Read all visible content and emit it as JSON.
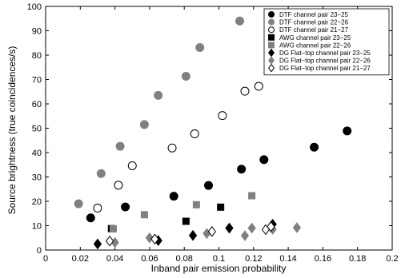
{
  "chart_data": {
    "type": "scatter",
    "title": "",
    "xlabel": "Inband pair emission probability",
    "ylabel": "Source brightness (true coincidences/s)",
    "xlim": [
      0,
      0.2
    ],
    "ylim": [
      0,
      100
    ],
    "xticks": [
      0,
      0.02,
      0.04,
      0.06,
      0.08,
      0.1,
      0.12,
      0.14,
      0.16,
      0.18,
      0.2
    ],
    "yticks": [
      0,
      10,
      20,
      30,
      40,
      50,
      60,
      70,
      80,
      90,
      100
    ],
    "xtick_labels": [
      "0",
      "0.02",
      "0.04",
      "0.06",
      "0.08",
      "0.1",
      "0.12",
      "0.14",
      "0.16",
      "0.18",
      "0.2"
    ],
    "ytick_labels": [
      "0",
      "10",
      "20",
      "30",
      "40",
      "50",
      "60",
      "70",
      "80",
      "90",
      "100"
    ],
    "grid": false,
    "legend_position": "top-right",
    "series": [
      {
        "name": "DTF channel pair 23−25",
        "marker": "circle",
        "fill": "#000000",
        "stroke": "#000000",
        "points": [
          [
            0.026,
            13.2
          ],
          [
            0.046,
            17.7
          ],
          [
            0.074,
            22.1
          ],
          [
            0.094,
            26.5
          ],
          [
            0.113,
            33.2
          ],
          [
            0.126,
            37.1
          ],
          [
            0.155,
            42.2
          ],
          [
            0.174,
            48.9
          ]
        ]
      },
      {
        "name": "DTF channel pair 22−26",
        "marker": "circle",
        "fill": "#808080",
        "stroke": "#808080",
        "points": [
          [
            0.019,
            19.0
          ],
          [
            0.032,
            31.4
          ],
          [
            0.043,
            42.6
          ],
          [
            0.057,
            51.5
          ],
          [
            0.065,
            63.5
          ],
          [
            0.081,
            71.3
          ],
          [
            0.089,
            83.1
          ],
          [
            0.112,
            94.0
          ]
        ]
      },
      {
        "name": "DTF channel pair 21−27",
        "marker": "circle",
        "fill": "#ffffff",
        "stroke": "#000000",
        "points": [
          [
            0.03,
            17.2
          ],
          [
            0.042,
            26.6
          ],
          [
            0.05,
            34.6
          ],
          [
            0.073,
            41.9
          ],
          [
            0.086,
            47.7
          ],
          [
            0.102,
            55.2
          ],
          [
            0.115,
            65.2
          ],
          [
            0.123,
            67.2
          ]
        ]
      },
      {
        "name": "AWG channel pair 23−25",
        "marker": "square",
        "fill": "#000000",
        "stroke": "#000000",
        "points": [
          [
            0.038,
            8.8
          ],
          [
            0.081,
            11.8
          ],
          [
            0.101,
            17.6
          ]
        ]
      },
      {
        "name": "AWG channel pair 22−26",
        "marker": "square",
        "fill": "#808080",
        "stroke": "#808080",
        "points": [
          [
            0.039,
            8.7
          ],
          [
            0.057,
            14.5
          ],
          [
            0.087,
            18.6
          ],
          [
            0.119,
            22.3
          ]
        ]
      },
      {
        "name": "DG Flat−top channel pair 23−25",
        "marker": "diamond",
        "fill": "#000000",
        "stroke": "#000000",
        "points": [
          [
            0.03,
            2.5
          ],
          [
            0.065,
            3.9
          ],
          [
            0.085,
            6.0
          ],
          [
            0.106,
            9.0
          ],
          [
            0.131,
            10.6
          ]
        ]
      },
      {
        "name": "DG Flat−top channel pair 22−26",
        "marker": "diamond",
        "fill": "#808080",
        "stroke": "#808080",
        "points": [
          [
            0.04,
            3.1
          ],
          [
            0.06,
            5.0
          ],
          [
            0.093,
            6.8
          ],
          [
            0.115,
            5.9
          ],
          [
            0.119,
            9.0
          ],
          [
            0.131,
            8.5
          ],
          [
            0.145,
            9.2
          ]
        ]
      },
      {
        "name": "DG Flat−top channel pair 21−27",
        "marker": "diamond",
        "fill": "#ffffff",
        "stroke": "#000000",
        "points": [
          [
            0.037,
            3.7
          ],
          [
            0.063,
            4.5
          ],
          [
            0.096,
            7.6
          ],
          [
            0.127,
            8.4
          ],
          [
            0.13,
            9.6
          ]
        ]
      }
    ]
  }
}
